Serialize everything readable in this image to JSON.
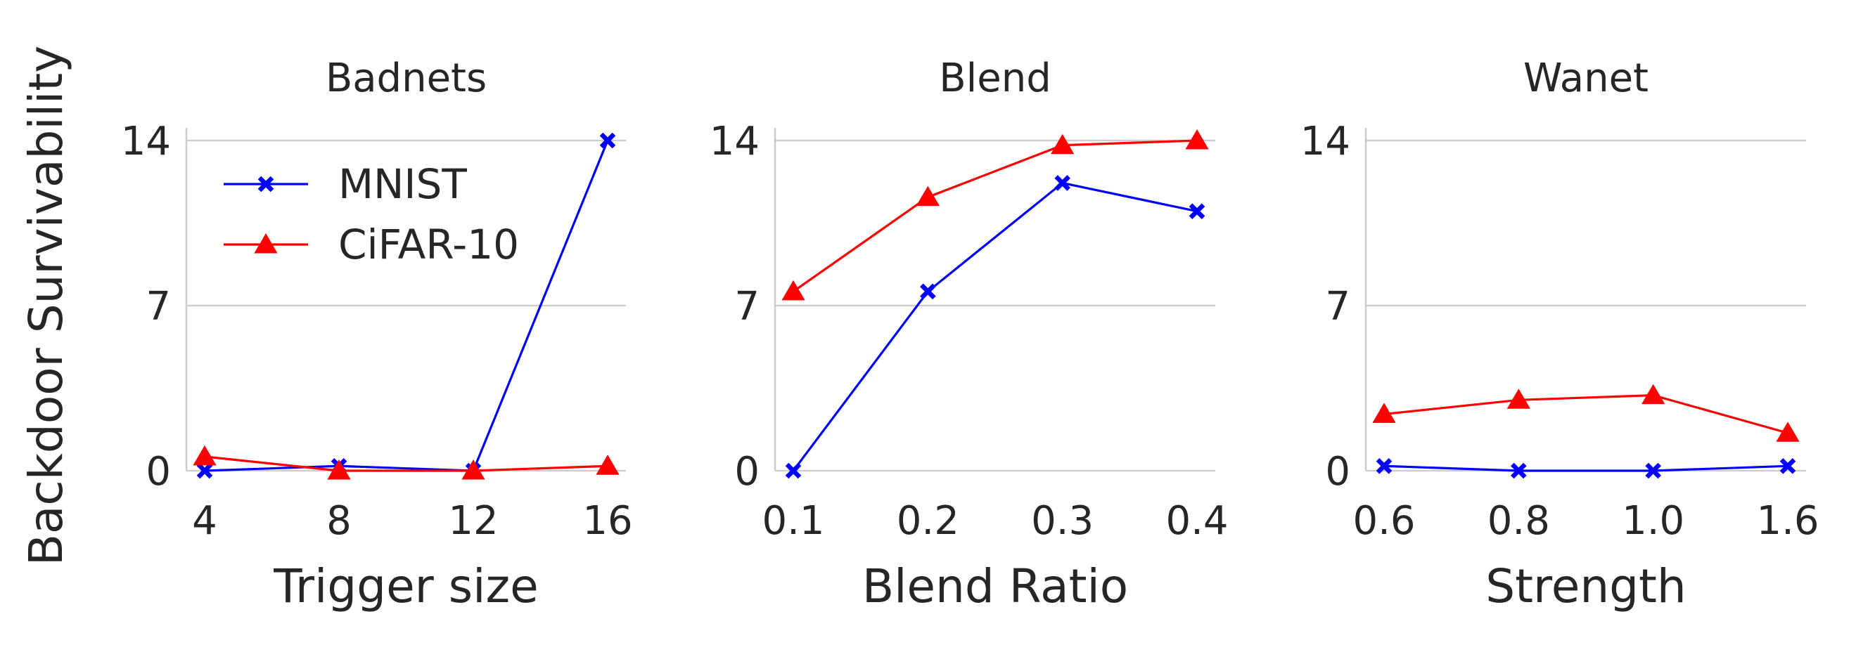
{
  "figure": {
    "ylabel": "Backdoor Survivability"
  },
  "colors": {
    "MNIST": "#0000ff",
    "CiFAR-10": "#ff0000",
    "grid": "#cccccc",
    "text": "#262626"
  },
  "legend": {
    "placement": "upper-left of first panel",
    "entries": [
      {
        "name": "MNIST",
        "marker": "x"
      },
      {
        "name": "CiFAR-10",
        "marker": "triangle"
      }
    ]
  },
  "chart_data": [
    {
      "type": "line",
      "title": "Badnets",
      "xlabel": "Trigger size",
      "ylabel": "Backdoor Survivability",
      "categories": [
        "4",
        "8",
        "12",
        "16"
      ],
      "yticks": [
        "0",
        "7",
        "14"
      ],
      "ylim": [
        0,
        14
      ],
      "grid": "horizontal",
      "series": [
        {
          "name": "MNIST",
          "values": [
            0.0,
            0.2,
            0.0,
            14.0
          ]
        },
        {
          "name": "CiFAR-10",
          "values": [
            0.6,
            0.0,
            0.0,
            0.2
          ]
        }
      ]
    },
    {
      "type": "line",
      "title": "Blend",
      "xlabel": "Blend Ratio",
      "ylabel": "",
      "categories": [
        "0.1",
        "0.2",
        "0.3",
        "0.4"
      ],
      "yticks": [
        "0",
        "7",
        "14"
      ],
      "ylim": [
        0,
        14
      ],
      "grid": "horizontal",
      "series": [
        {
          "name": "MNIST",
          "values": [
            0.0,
            7.6,
            12.2,
            11.0
          ]
        },
        {
          "name": "CiFAR-10",
          "values": [
            7.6,
            11.6,
            13.8,
            14.0
          ]
        }
      ]
    },
    {
      "type": "line",
      "title": "Wanet",
      "xlabel": "Strength",
      "ylabel": "",
      "categories": [
        "0.6",
        "0.8",
        "1.0",
        "1.6"
      ],
      "yticks": [
        "0",
        "7",
        "14"
      ],
      "ylim": [
        0,
        14
      ],
      "grid": "horizontal",
      "series": [
        {
          "name": "MNIST",
          "values": [
            0.2,
            0.0,
            0.0,
            0.2
          ]
        },
        {
          "name": "CiFAR-10",
          "values": [
            2.4,
            3.0,
            3.2,
            1.6
          ]
        }
      ]
    }
  ]
}
